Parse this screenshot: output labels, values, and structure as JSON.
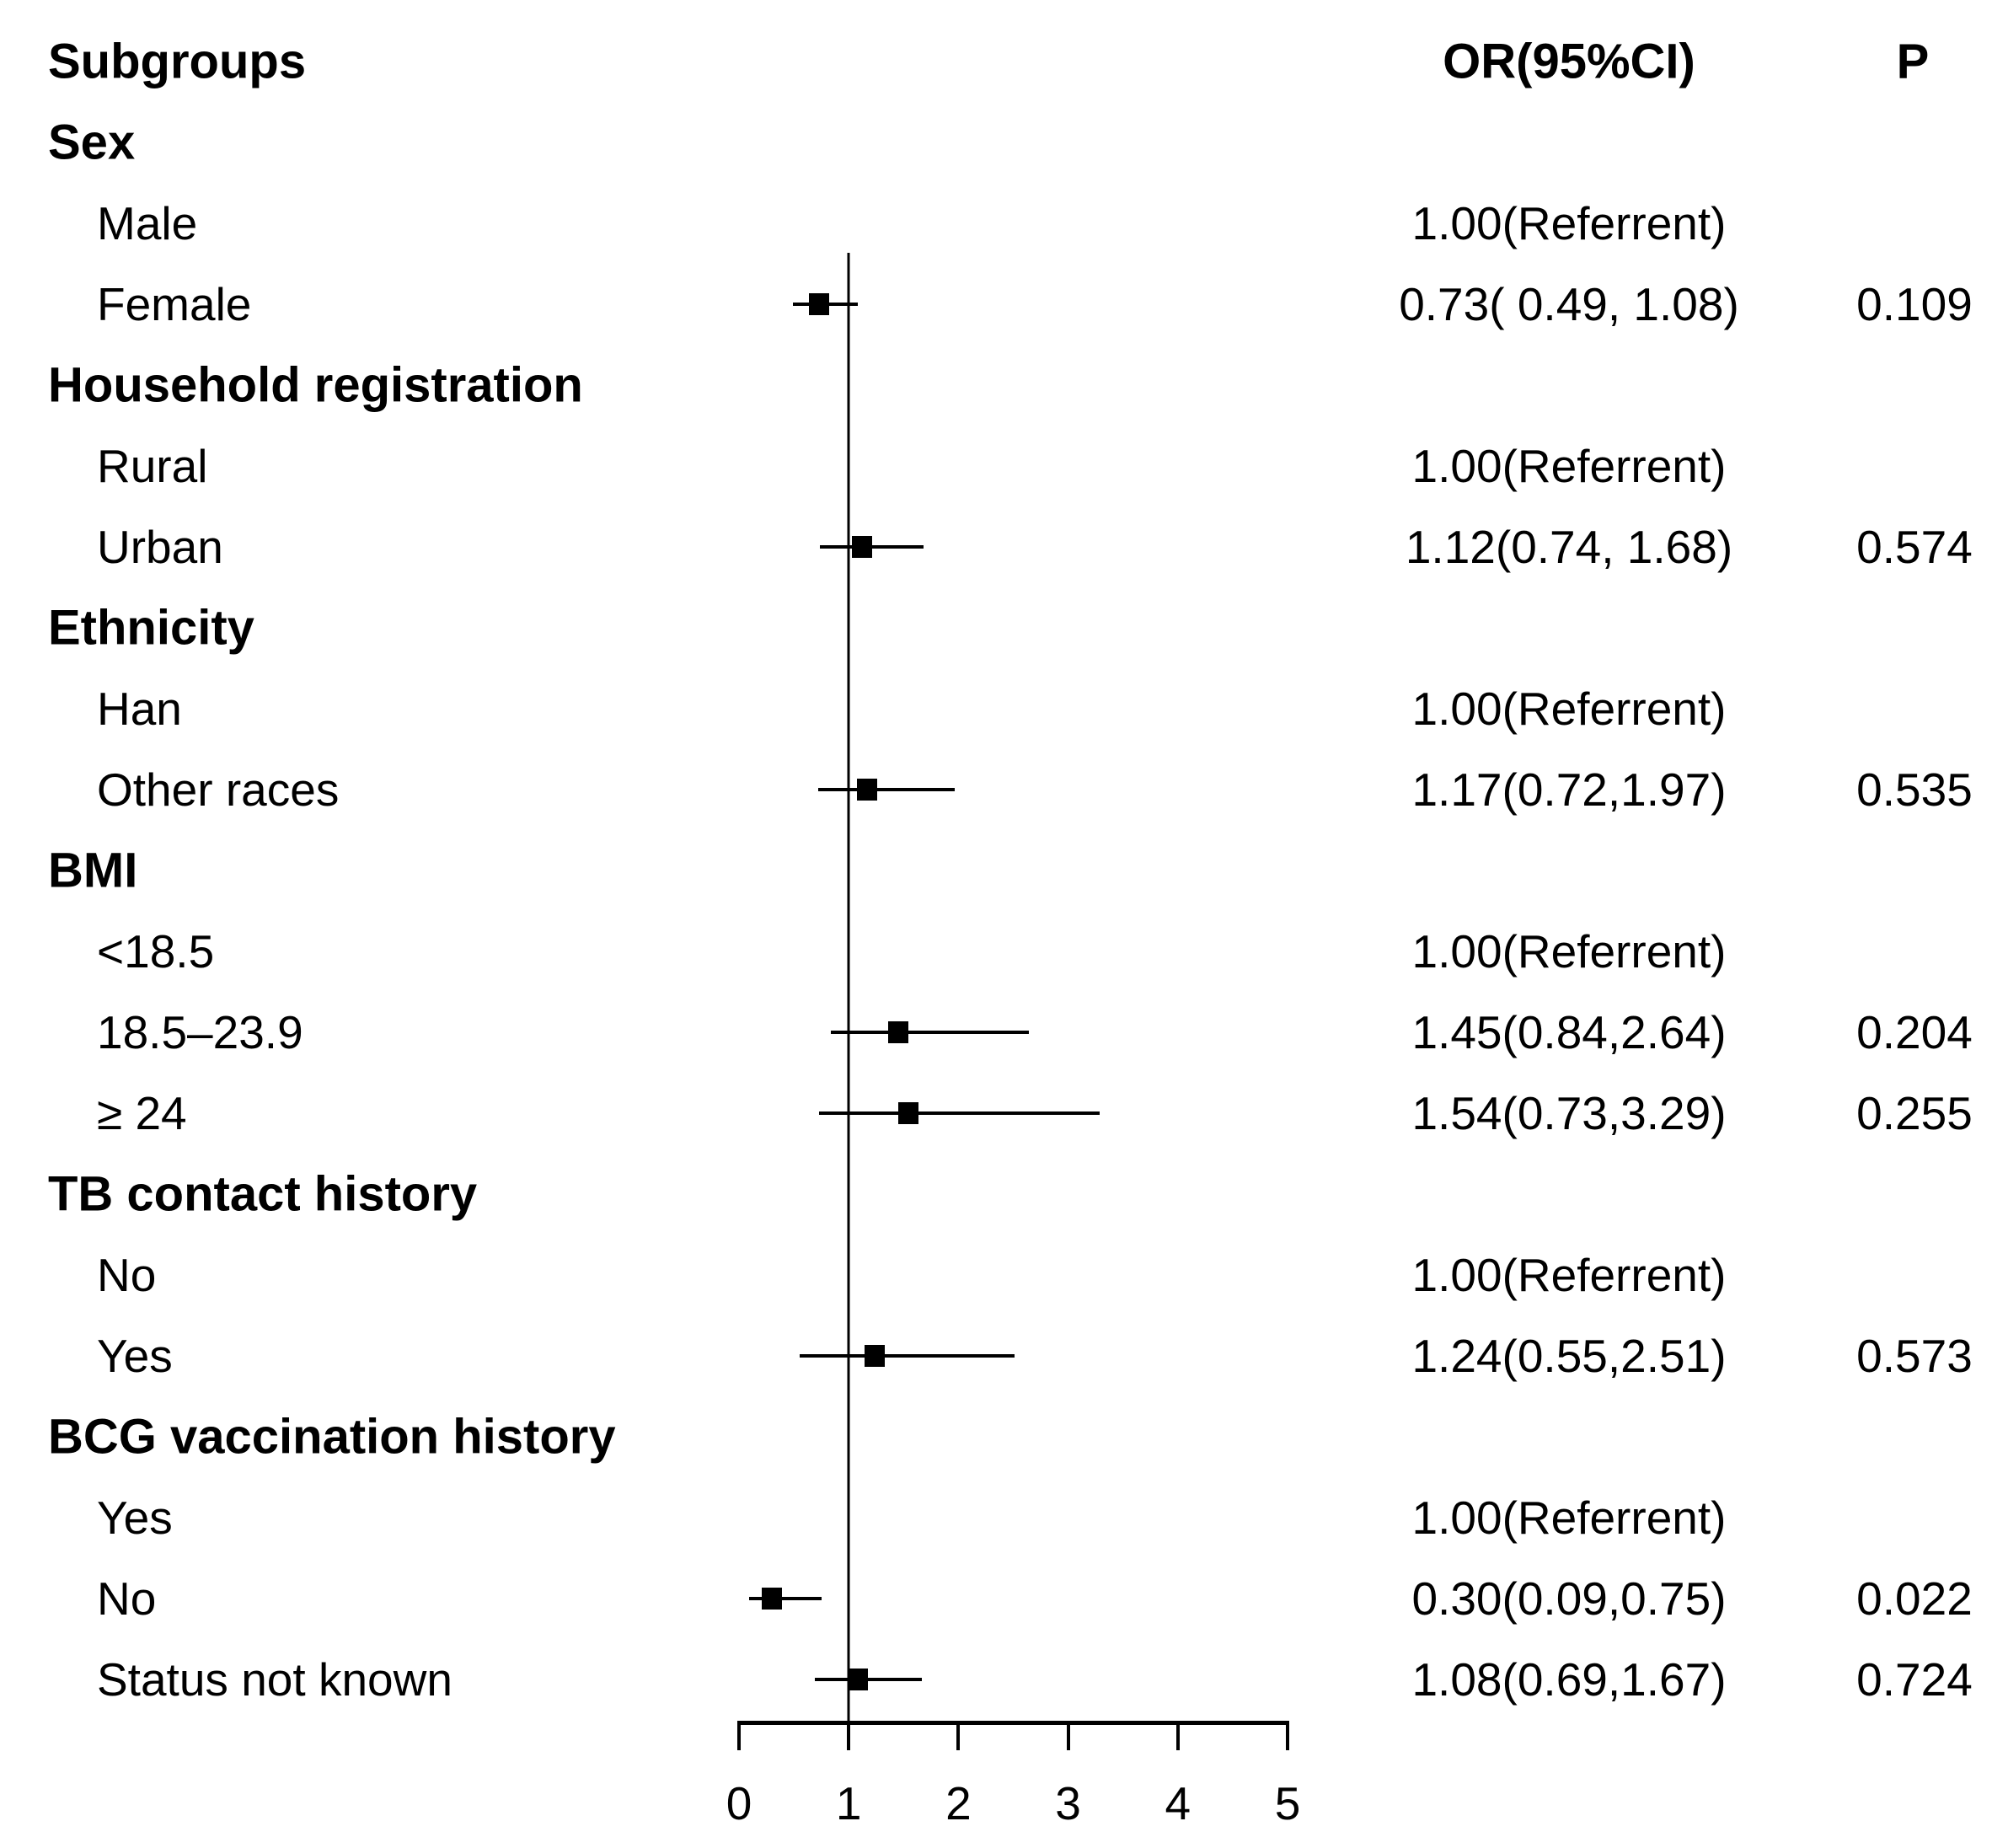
{
  "columns": {
    "subgroups": "Subgroups",
    "or_ci": "OR(95%CI)",
    "p": "P"
  },
  "chart_data": {
    "type": "forest",
    "title": "",
    "xlabel": "",
    "axis": {
      "min": 0,
      "max": 5,
      "ticks": [
        "0",
        "1",
        "2",
        "3",
        "4",
        "5"
      ],
      "reference_line": 1,
      "grid": false
    },
    "marker_color": "#000000",
    "rows": [
      {
        "label": "Sex",
        "type": "group",
        "or_text": "",
        "p": ""
      },
      {
        "label": "Male",
        "type": "item",
        "or_text": "1.00(Referrent)",
        "p": ""
      },
      {
        "label": "Female",
        "type": "item",
        "or": 0.73,
        "ci_low": 0.49,
        "ci_high": 1.08,
        "or_text": "0.73( 0.49, 1.08)",
        "p": "0.109"
      },
      {
        "label": "Household registration",
        "type": "group",
        "or_text": "",
        "p": ""
      },
      {
        "label": "Rural",
        "type": "item",
        "or_text": "1.00(Referrent)",
        "p": ""
      },
      {
        "label": "Urban",
        "type": "item",
        "or": 1.12,
        "ci_low": 0.74,
        "ci_high": 1.68,
        "or_text": "1.12(0.74, 1.68)",
        "p": "0.574"
      },
      {
        "label": "Ethnicity",
        "type": "group",
        "or_text": "",
        "p": ""
      },
      {
        "label": "Han",
        "type": "item",
        "or_text": "1.00(Referrent)",
        "p": ""
      },
      {
        "label": "Other races",
        "type": "item",
        "or": 1.17,
        "ci_low": 0.72,
        "ci_high": 1.97,
        "or_text": "1.17(0.72,1.97)",
        "p": "0.535"
      },
      {
        "label": "BMI",
        "type": "group",
        "or_text": "",
        "p": ""
      },
      {
        "label": "<18.5",
        "type": "item",
        "or_text": "1.00(Referrent)",
        "p": ""
      },
      {
        "label": "18.5–23.9",
        "type": "item",
        "or": 1.45,
        "ci_low": 0.84,
        "ci_high": 2.64,
        "or_text": "1.45(0.84,2.64)",
        "p": "0.204"
      },
      {
        "label": "≥ 24",
        "type": "item",
        "or": 1.54,
        "ci_low": 0.73,
        "ci_high": 3.29,
        "or_text": "1.54(0.73,3.29)",
        "p": "0.255"
      },
      {
        "label": "TB contact history",
        "type": "group",
        "or_text": "",
        "p": ""
      },
      {
        "label": "No",
        "type": "item",
        "or_text": "1.00(Referrent)",
        "p": ""
      },
      {
        "label": "Yes",
        "type": "item",
        "or": 1.24,
        "ci_low": 0.55,
        "ci_high": 2.51,
        "or_text": "1.24(0.55,2.51)",
        "p": "0.573"
      },
      {
        "label": "BCG vaccination history",
        "type": "group",
        "or_text": "",
        "p": ""
      },
      {
        "label": "Yes",
        "type": "item",
        "or_text": "1.00(Referrent)",
        "p": ""
      },
      {
        "label": "No",
        "type": "item",
        "or": 0.3,
        "ci_low": 0.09,
        "ci_high": 0.75,
        "or_text": "0.30(0.09,0.75)",
        "p": "0.022"
      },
      {
        "label": "Status not known",
        "type": "item",
        "or": 1.08,
        "ci_low": 0.69,
        "ci_high": 1.67,
        "or_text": "1.08(0.69,1.67)",
        "p": "0.724"
      }
    ]
  }
}
